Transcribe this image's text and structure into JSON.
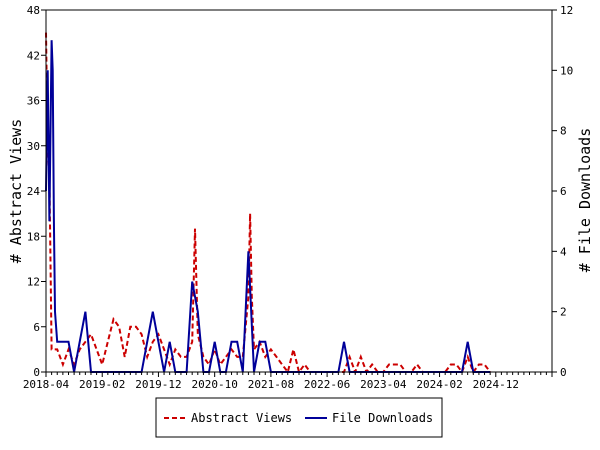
{
  "chart_data": {
    "type": "line",
    "x_tick_labels": [
      "2018-04",
      "2019-02",
      "2019-12",
      "2020-10",
      "2021-08",
      "2022-06",
      "2023-04",
      "2024-02",
      "2024-12"
    ],
    "y_left": {
      "label": "# Abstract Views",
      "ylim": [
        0,
        48
      ],
      "ticks": [
        "0",
        "6",
        "12",
        "18",
        "24",
        "30",
        "36",
        "42",
        "48"
      ]
    },
    "y_right": {
      "label": "# File Downloads",
      "ylim": [
        0,
        12
      ],
      "ticks": [
        "0",
        "2",
        "4",
        "6",
        "8",
        "10",
        "12"
      ]
    },
    "x_range_months": [
      0,
      90
    ],
    "series": [
      {
        "name": "Abstract Views",
        "axis": "left",
        "color": "#cc0000",
        "dash": true,
        "points": [
          [
            0,
            45
          ],
          [
            0.3,
            30
          ],
          [
            0.6,
            26
          ],
          [
            1,
            3
          ],
          [
            2,
            3
          ],
          [
            3,
            1
          ],
          [
            4,
            3
          ],
          [
            5,
            1
          ],
          [
            6,
            3
          ],
          [
            7,
            4
          ],
          [
            8,
            5
          ],
          [
            9,
            3
          ],
          [
            10,
            1
          ],
          [
            11,
            4
          ],
          [
            12,
            7
          ],
          [
            13,
            6
          ],
          [
            14,
            2
          ],
          [
            15,
            6
          ],
          [
            16,
            6
          ],
          [
            17,
            5
          ],
          [
            18,
            2
          ],
          [
            19,
            4
          ],
          [
            20,
            5
          ],
          [
            21,
            3
          ],
          [
            22,
            1
          ],
          [
            23,
            3
          ],
          [
            24,
            2
          ],
          [
            25,
            2
          ],
          [
            26,
            4
          ],
          [
            26.5,
            19
          ],
          [
            27,
            5
          ],
          [
            28,
            2
          ],
          [
            29,
            1
          ],
          [
            30,
            3
          ],
          [
            31,
            1
          ],
          [
            32,
            2
          ],
          [
            33,
            3
          ],
          [
            34,
            2
          ],
          [
            35,
            2
          ],
          [
            36,
            10
          ],
          [
            36.3,
            21
          ],
          [
            36.6,
            10
          ],
          [
            37,
            3
          ],
          [
            38,
            4
          ],
          [
            39,
            2
          ],
          [
            40,
            3
          ],
          [
            41,
            2
          ],
          [
            42,
            1
          ],
          [
            43,
            0
          ],
          [
            44,
            3
          ],
          [
            45,
            0
          ],
          [
            46,
            1
          ],
          [
            47,
            0
          ],
          [
            48,
            0
          ],
          [
            49,
            0
          ],
          [
            50,
            0
          ],
          [
            51,
            0
          ],
          [
            52,
            0
          ],
          [
            53,
            0
          ],
          [
            54,
            2
          ],
          [
            55,
            0
          ],
          [
            56,
            2
          ],
          [
            57,
            0
          ],
          [
            58,
            1
          ],
          [
            59,
            0
          ],
          [
            60,
            0
          ],
          [
            61,
            1
          ],
          [
            62,
            1
          ],
          [
            63,
            1
          ],
          [
            64,
            0
          ],
          [
            65,
            0
          ],
          [
            66,
            1
          ],
          [
            67,
            0
          ],
          [
            68,
            0
          ],
          [
            69,
            0
          ],
          [
            70,
            0
          ],
          [
            71,
            0
          ],
          [
            72,
            1
          ],
          [
            73,
            1
          ],
          [
            74,
            0
          ],
          [
            75,
            2
          ],
          [
            76,
            0
          ],
          [
            77,
            1
          ],
          [
            78,
            1
          ],
          [
            79,
            0
          ]
        ]
      },
      {
        "name": "File Downloads",
        "axis": "right",
        "color": "#000099",
        "dash": false,
        "points": [
          [
            0,
            6
          ],
          [
            0.3,
            10
          ],
          [
            0.6,
            5
          ],
          [
            1,
            11
          ],
          [
            1.2,
            10
          ],
          [
            1.4,
            5
          ],
          [
            1.6,
            2
          ],
          [
            2,
            1
          ],
          [
            3,
            1
          ],
          [
            4,
            1
          ],
          [
            5,
            0
          ],
          [
            6,
            1
          ],
          [
            7,
            2
          ],
          [
            8,
            0
          ],
          [
            9,
            0
          ],
          [
            10,
            0
          ],
          [
            11,
            0
          ],
          [
            12,
            0
          ],
          [
            13,
            0
          ],
          [
            14,
            0
          ],
          [
            15,
            0
          ],
          [
            16,
            0
          ],
          [
            17,
            0
          ],
          [
            18,
            1
          ],
          [
            19,
            2
          ],
          [
            20,
            1
          ],
          [
            21,
            0
          ],
          [
            22,
            1
          ],
          [
            23,
            0
          ],
          [
            24,
            0
          ],
          [
            25,
            0
          ],
          [
            26,
            3
          ],
          [
            27,
            2
          ],
          [
            28,
            0
          ],
          [
            29,
            0
          ],
          [
            30,
            1
          ],
          [
            31,
            0
          ],
          [
            32,
            0
          ],
          [
            33,
            1
          ],
          [
            34,
            1
          ],
          [
            35,
            0
          ],
          [
            36,
            4
          ],
          [
            37,
            0
          ],
          [
            38,
            1
          ],
          [
            39,
            1
          ],
          [
            40,
            0
          ],
          [
            41,
            0
          ],
          [
            42,
            0
          ],
          [
            43,
            0
          ],
          [
            44,
            0
          ],
          [
            45,
            0
          ],
          [
            46,
            0
          ],
          [
            47,
            0
          ],
          [
            48,
            0
          ],
          [
            49,
            0
          ],
          [
            50,
            0
          ],
          [
            51,
            0
          ],
          [
            52,
            0
          ],
          [
            53,
            1
          ],
          [
            54,
            0
          ],
          [
            55,
            0
          ],
          [
            56,
            0
          ],
          [
            57,
            0
          ],
          [
            58,
            0
          ],
          [
            59,
            0
          ],
          [
            60,
            0
          ],
          [
            61,
            0
          ],
          [
            62,
            0
          ],
          [
            63,
            0
          ],
          [
            64,
            0
          ],
          [
            65,
            0
          ],
          [
            66,
            0
          ],
          [
            67,
            0
          ],
          [
            68,
            0
          ],
          [
            69,
            0
          ],
          [
            70,
            0
          ],
          [
            71,
            0
          ],
          [
            72,
            0
          ],
          [
            73,
            0
          ],
          [
            74,
            0
          ],
          [
            75,
            1
          ],
          [
            76,
            0
          ],
          [
            77,
            0
          ],
          [
            78,
            0
          ],
          [
            79,
            0
          ]
        ]
      }
    ],
    "legend": {
      "placement": "bottom",
      "entries": [
        "Abstract Views",
        "File Downloads"
      ]
    }
  }
}
